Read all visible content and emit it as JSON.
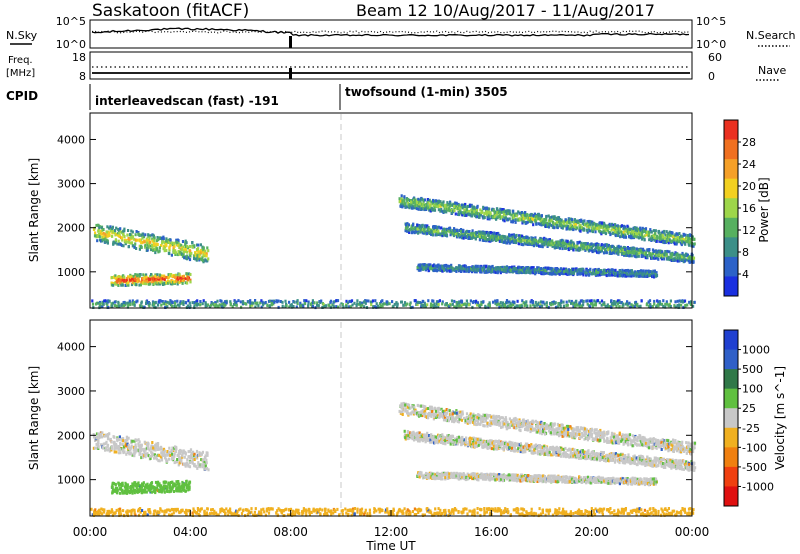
{
  "header": {
    "station": "Saskatoon (fitACF)",
    "beam_date": "Beam 12  10/Aug/2017 - 11/Aug/2017"
  },
  "status_panels": {
    "nsky_label": "N.Sky",
    "nsearch_label": "N.Search",
    "freq_label_line1": "Freq.",
    "freq_label_line2": "[MHz]",
    "nave_label": "Nave",
    "cpid_label": "CPID",
    "left_ticks_noise": [
      "10^5",
      "10^0"
    ],
    "right_ticks_noise": [
      "10^5",
      "10^0"
    ],
    "left_ticks_freq": [
      "18",
      "8"
    ],
    "right_ticks_freq": [
      "60",
      "0"
    ],
    "cpid_segments": [
      {
        "text": "interleavedscan (fast) -191",
        "start_hour": 0
      },
      {
        "text": "twofsound (1-min) 3505",
        "start_hour": 10
      }
    ]
  },
  "chart_data": [
    {
      "type": "heatmap",
      "name": "power",
      "ylabel": "Slant Range [km]",
      "yticks": [
        "1000",
        "2000",
        "3000",
        "4000"
      ],
      "ylim": [
        180,
        4600
      ],
      "xlim_hours": [
        0,
        24
      ],
      "colorbar": {
        "label": "Power [dB]",
        "ticks": [
          "4",
          "8",
          "12",
          "16",
          "20",
          "24",
          "28"
        ],
        "range": [
          0,
          30
        ],
        "colors": [
          "#1a30e0",
          "#2c62c8",
          "#3c8f88",
          "#57b060",
          "#9ed64a",
          "#f2d020",
          "#f5a028",
          "#f07020",
          "#ea3020"
        ]
      },
      "features": [
        {
          "label": "echo band A",
          "start_hour": 0.1,
          "end_hour": 4.6,
          "range_start_km": 1900,
          "range_end_km": 1400,
          "band_half_width_km": 200,
          "level": 15
        },
        {
          "label": "echo band B",
          "start_hour": 0.8,
          "end_hour": 3.9,
          "range_start_km": 800,
          "range_end_km": 850,
          "band_half_width_km": 120,
          "level": 22
        },
        {
          "label": "echo band C",
          "start_hour": 12.3,
          "end_hour": 24,
          "range_start_km": 2600,
          "range_end_km": 1700,
          "band_half_width_km": 130,
          "level": 12
        },
        {
          "label": "echo band D",
          "start_hour": 12.5,
          "end_hour": 24,
          "range_start_km": 2000,
          "range_end_km": 1300,
          "band_half_width_km": 100,
          "level": 10
        },
        {
          "label": "echo band E",
          "start_hour": 13.0,
          "end_hour": 22.5,
          "range_start_km": 1100,
          "range_end_km": 950,
          "band_half_width_km": 70,
          "level": 8
        },
        {
          "label": "near-range band",
          "start_hour": 0,
          "end_hour": 24,
          "range_start_km": 250,
          "range_end_km": 250,
          "band_half_width_km": 100,
          "level": 9
        }
      ]
    },
    {
      "type": "heatmap",
      "name": "velocity",
      "ylabel": "Slant Range [km]",
      "yticks": [
        "1000",
        "2000",
        "3000",
        "4000"
      ],
      "ylim": [
        180,
        4600
      ],
      "xlabel": "Time UT",
      "xticks": [
        "00:00",
        "04:00",
        "08:00",
        "12:00",
        "16:00",
        "20:00",
        "00:00"
      ],
      "xlim_hours": [
        0,
        24
      ],
      "colorbar": {
        "label": "Velocity [m s^-1]",
        "ticks": [
          "1000",
          "500",
          "100",
          "25",
          "-25",
          "-100",
          "-500",
          "-1000"
        ],
        "colors": [
          "#2040d0",
          "#3060c8",
          "#307848",
          "#60c040",
          "#c8c8c8",
          "#f0b020",
          "#f08010",
          "#f04010",
          "#e01010"
        ]
      },
      "features": [
        {
          "label": "echo band A",
          "start_hour": 0.1,
          "end_hour": 4.6,
          "range_start_km": 1900,
          "range_end_km": 1400,
          "band_half_width_km": 200,
          "velocity": 0
        },
        {
          "label": "echo band B",
          "start_hour": 0.8,
          "end_hour": 3.9,
          "range_start_km": 800,
          "range_end_km": 850,
          "band_half_width_km": 120,
          "velocity": 60
        },
        {
          "label": "echo band C",
          "start_hour": 12.3,
          "end_hour": 24,
          "range_start_km": 2600,
          "range_end_km": 1700,
          "band_half_width_km": 130,
          "velocity": 0
        },
        {
          "label": "echo band D",
          "start_hour": 12.5,
          "end_hour": 24,
          "range_start_km": 2000,
          "range_end_km": 1300,
          "band_half_width_km": 100,
          "velocity": 0
        },
        {
          "label": "echo band E",
          "start_hour": 13.0,
          "end_hour": 22.5,
          "range_start_km": 1100,
          "range_end_km": 950,
          "band_half_width_km": 70,
          "velocity": 0
        },
        {
          "label": "near-range band",
          "start_hour": 0,
          "end_hour": 24,
          "range_start_km": 250,
          "range_end_km": 250,
          "band_half_width_km": 100,
          "velocity": -60
        }
      ]
    }
  ]
}
